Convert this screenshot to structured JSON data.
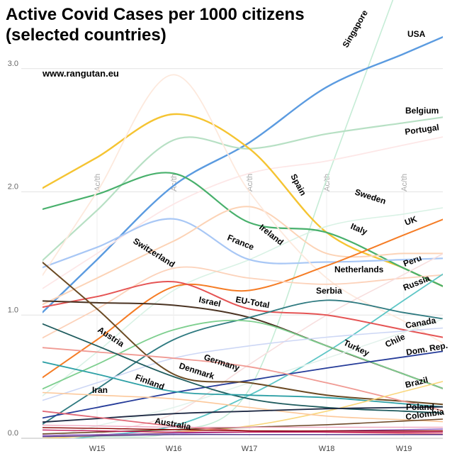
{
  "chart_data": {
    "type": "line",
    "title_lines": [
      "Active Covid Cases per 1000 citizens",
      "(selected countries)"
    ],
    "source": "www.rangutan.eu",
    "categories": [
      "W15",
      "W16",
      "W17",
      "W18",
      "W19"
    ],
    "x_marker_label": "Ac/th",
    "ylim": [
      0,
      3.2
    ],
    "yticks": [
      0.0,
      1.0,
      2.0,
      3.0
    ],
    "ytick_labels": [
      "0.0",
      "1.0",
      "2.0",
      "3.0"
    ],
    "grid": true,
    "series": [
      {
        "name": "Singapore",
        "color": "#c5ecd6",
        "width": 1.6,
        "values": [
          0.01,
          0.05,
          0.4,
          2.1,
          3.8
        ]
      },
      {
        "name": "USA",
        "color": "#5b9be0",
        "width": 2.4,
        "values": [
          1.45,
          2.05,
          2.4,
          2.85,
          3.12
        ]
      },
      {
        "name": "Belgium",
        "color": "#b7e0c4",
        "width": 2.2,
        "values": [
          1.85,
          2.42,
          2.35,
          2.47,
          2.56
        ]
      },
      {
        "name": "Portugal",
        "color": "#fde7e7",
        "width": 1.8,
        "values": [
          1.5,
          1.9,
          2.15,
          2.25,
          2.38
        ]
      },
      {
        "name": "Spain",
        "color": "#f5c432",
        "width": 2.4,
        "values": [
          2.28,
          2.63,
          2.35,
          1.67,
          1.38
        ]
      },
      {
        "name": "Sweden",
        "color": "#d9f2e5",
        "width": 1.6,
        "values": [
          0.7,
          1.2,
          1.45,
          1.72,
          1.82
        ]
      },
      {
        "name": "Italy",
        "color": "#48b06c",
        "width": 2.2,
        "values": [
          1.98,
          2.15,
          1.75,
          1.67,
          1.38
        ]
      },
      {
        "name": "France",
        "color": "#a8c7f5",
        "width": 2.2,
        "values": [
          1.55,
          1.78,
          1.45,
          1.43,
          1.45
        ]
      },
      {
        "name": "Ireland",
        "color": "#fcd3b6",
        "width": 2.0,
        "values": [
          1.3,
          1.6,
          1.88,
          1.5,
          1.5
        ]
      },
      {
        "name": "Switzerland",
        "color": "#fde9dd",
        "width": 1.8,
        "values": [
          2.0,
          2.95,
          2.0,
          1.3,
          0.95
        ]
      },
      {
        "name": "UK",
        "color": "#f57c25",
        "width": 2.0,
        "values": [
          0.8,
          1.23,
          1.2,
          1.4,
          1.65
        ]
      },
      {
        "name": "Netherlands",
        "color": "#fcd2ba",
        "width": 1.8,
        "values": [
          1.05,
          1.38,
          1.3,
          1.25,
          1.3
        ]
      },
      {
        "name": "Peru",
        "color": "#f7dede",
        "width": 1.6,
        "values": [
          0.03,
          0.2,
          0.6,
          1.0,
          1.33
        ]
      },
      {
        "name": "Russia",
        "color": "#5ec6c6",
        "width": 1.8,
        "values": [
          0.02,
          0.1,
          0.35,
          0.7,
          1.12
        ]
      },
      {
        "name": "EU-Total",
        "color": "#e55454",
        "width": 2.0,
        "values": [
          1.15,
          1.27,
          1.05,
          1.0,
          0.88
        ]
      },
      {
        "name": "Israel",
        "color": "#4a3322",
        "width": 2.0,
        "values": [
          1.1,
          1.08,
          0.98,
          0.75,
          0.52
        ]
      },
      {
        "name": "Serbia",
        "color": "#2f7a80",
        "width": 1.8,
        "values": [
          0.4,
          0.8,
          0.98,
          1.12,
          1.02
        ]
      },
      {
        "name": "Turkey",
        "color": "#7ecf8f",
        "width": 1.8,
        "values": [
          0.6,
          0.88,
          0.95,
          0.75,
          0.52
        ]
      },
      {
        "name": "Canada",
        "color": "#cdd7f5",
        "width": 1.6,
        "values": [
          0.45,
          0.65,
          0.75,
          0.82,
          0.87
        ]
      },
      {
        "name": "Chile",
        "color": "#e3f2ec",
        "width": 1.6,
        "values": [
          0.1,
          0.25,
          0.45,
          0.65,
          0.86
        ]
      },
      {
        "name": "Dom. Rep.",
        "color": "#263c99",
        "width": 1.8,
        "values": [
          0.25,
          0.37,
          0.47,
          0.57,
          0.66
        ]
      },
      {
        "name": "Austria",
        "color": "#6b4a23",
        "width": 2.0,
        "values": [
          1.05,
          0.52,
          0.45,
          0.35,
          0.3
        ]
      },
      {
        "name": "Germany",
        "color": "#f09a93",
        "width": 1.8,
        "values": [
          0.7,
          0.65,
          0.58,
          0.45,
          0.3
        ]
      },
      {
        "name": "Denmark",
        "color": "#1f5c5e",
        "width": 1.8,
        "values": [
          0.75,
          0.5,
          0.32,
          0.25,
          0.22
        ]
      },
      {
        "name": "Finland",
        "color": "#2ea0a6",
        "width": 1.8,
        "values": [
          0.52,
          0.38,
          0.35,
          0.33,
          0.28
        ]
      },
      {
        "name": "Brazil",
        "color": "#f9d77c",
        "width": 1.6,
        "values": [
          0.02,
          0.05,
          0.1,
          0.22,
          0.38
        ]
      },
      {
        "name": "Iran",
        "color": "#fcc89a",
        "width": 1.6,
        "values": [
          0.35,
          0.32,
          0.25,
          0.18,
          0.15
        ]
      },
      {
        "name": "Poland",
        "color": "#1f2a44",
        "width": 1.8,
        "values": [
          0.16,
          0.2,
          0.22,
          0.24,
          0.25
        ]
      },
      {
        "name": "Colombia",
        "color": "#6f4a2a",
        "width": 1.6,
        "values": [
          0.05,
          0.07,
          0.09,
          0.11,
          0.14
        ]
      },
      {
        "name": "Australia",
        "color": "#e16a79",
        "width": 1.8,
        "values": [
          0.17,
          0.1,
          0.06,
          0.05,
          0.04
        ]
      },
      {
        "name": "",
        "color": "#8e5bbd",
        "width": 1.4,
        "values": [
          0.03,
          0.04,
          0.05,
          0.06,
          0.07
        ]
      },
      {
        "name": "",
        "color": "#c2185b",
        "width": 1.4,
        "values": [
          0.06,
          0.05,
          0.05,
          0.05,
          0.05
        ]
      },
      {
        "name": "",
        "color": "#8b0000",
        "width": 1.4,
        "values": [
          0.08,
          0.07,
          0.06,
          0.06,
          0.06
        ]
      },
      {
        "name": "",
        "color": "#4b2e83",
        "width": 1.4,
        "values": [
          0.02,
          0.03,
          0.03,
          0.03,
          0.03
        ]
      },
      {
        "name": "",
        "color": "#f0a8c0",
        "width": 1.4,
        "values": [
          0.1,
          0.09,
          0.09,
          0.09,
          0.09
        ]
      }
    ]
  }
}
